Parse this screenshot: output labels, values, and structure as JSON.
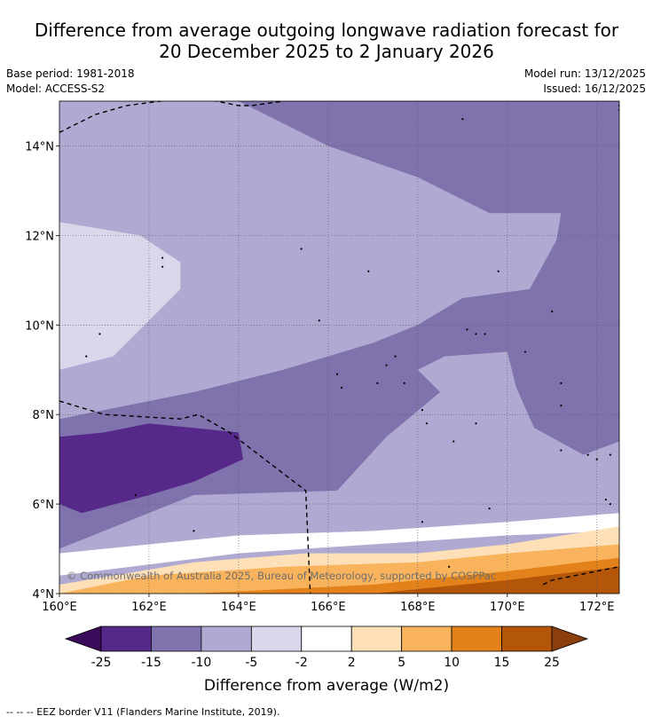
{
  "header": {
    "title_line1": "Difference from average outgoing longwave radiation forecast for",
    "title_line2": "20 December 2025 to 2 January 2026",
    "base_period": "Base period: 1981-2018",
    "model": "Model: ACCESS-S2",
    "model_run": "Model run: 13/12/2025",
    "issued": "Issued: 16/12/2025"
  },
  "chart_data": {
    "type": "heatmap",
    "title": "Difference from average outgoing longwave radiation forecast for 20 December 2025 to 2 January 2026",
    "x_range": [
      160,
      172.5
    ],
    "y_range": [
      4,
      15
    ],
    "x_ticks": [
      160,
      162,
      164,
      166,
      168,
      170,
      172
    ],
    "x_tick_labels": [
      "160°E",
      "162°E",
      "164°E",
      "166°E",
      "168°E",
      "170°E",
      "172°E"
    ],
    "y_ticks": [
      4,
      6,
      8,
      10,
      12,
      14
    ],
    "y_tick_labels": [
      "4°N",
      "6°N",
      "8°N",
      "10°N",
      "12°N",
      "14°N"
    ],
    "grid": true,
    "copyright": "© Commonwealth of Australia 2025, Bureau of Meteorology, supported by COSPPac",
    "colorbar": {
      "label": "Difference from average (W/m2)",
      "ticks": [
        "-25",
        "-15",
        "-10",
        "-5",
        "-2",
        "2",
        "5",
        "10",
        "15",
        "25"
      ],
      "under_color": "#3a0a5c",
      "over_color": "#8a3f0c",
      "bins": [
        {
          "range": [
            -25,
            -15
          ],
          "color": "#55288a"
        },
        {
          "range": [
            -15,
            -10
          ],
          "color": "#7f72ad"
        },
        {
          "range": [
            -10,
            -5
          ],
          "color": "#b0aad2"
        },
        {
          "range": [
            -5,
            -2
          ],
          "color": "#d8d8ea"
        },
        {
          "range": [
            -2,
            2
          ],
          "color": "#ffffff"
        },
        {
          "range": [
            2,
            5
          ],
          "color": "#fde0b8"
        },
        {
          "range": [
            5,
            10
          ],
          "color": "#f9b35c"
        },
        {
          "range": [
            10,
            15
          ],
          "color": "#e3821a"
        },
        {
          "range": [
            15,
            25
          ],
          "color": "#b4560a"
        }
      ]
    },
    "regions": [
      {
        "name": "region-minus10-minus5",
        "color": "#b0aad2",
        "points": [
          [
            160,
            15
          ],
          [
            164,
            15
          ],
          [
            166,
            14.2
          ],
          [
            168,
            13.4
          ],
          [
            170,
            12.4
          ],
          [
            171.3,
            12.5
          ],
          [
            170.5,
            11
          ],
          [
            168.5,
            10.8
          ],
          [
            167,
            10
          ],
          [
            165,
            9.3
          ],
          [
            163,
            8.8
          ],
          [
            160,
            8
          ],
          [
            160,
            15
          ]
        ]
      },
      {
        "name": "region-minus10-minus5-east",
        "color": "#b0aad2",
        "points": [
          [
            167.7,
            9.3
          ],
          [
            169,
            9.9
          ],
          [
            170,
            9.6
          ],
          [
            170.8,
            9.4
          ],
          [
            171,
            8.6
          ],
          [
            172,
            7.4
          ],
          [
            172.5,
            6.8
          ],
          [
            172.5,
            5.4
          ],
          [
            170,
            6
          ],
          [
            167,
            6.5
          ],
          [
            165.6,
            6.2
          ],
          [
            164,
            6.5
          ],
          [
            162,
            6.8
          ],
          [
            161.5,
            7.5
          ],
          [
            160,
            7.3
          ],
          [
            160,
            5
          ],
          [
            172.5,
            4
          ],
          [
            172.5,
            6.8
          ],
          [
            171.8,
            7
          ],
          [
            170.8,
            7.4
          ],
          [
            170.5,
            8.6
          ],
          [
            170.2,
            9.3
          ],
          [
            168.6,
            9.4
          ],
          [
            168,
            8.9
          ],
          [
            167.7,
            9.3
          ]
        ]
      },
      {
        "name": "region-minus5-minus2",
        "color": "#d8d8ea",
        "points": [
          [
            160,
            12.3
          ],
          [
            161.8,
            12
          ],
          [
            162.7,
            11.4
          ],
          [
            162.7,
            10.8
          ],
          [
            161.2,
            9.3
          ],
          [
            160,
            9
          ],
          [
            160,
            12.3
          ]
        ]
      },
      {
        "name": "region-minus15-minus10",
        "color": "#7f72ad",
        "points": [
          [
            162,
            15
          ],
          [
            172.5,
            15
          ],
          [
            172.5,
            7.4
          ],
          [
            171.7,
            7.1
          ],
          [
            170.6,
            7.7
          ],
          [
            170.2,
            8.6
          ],
          [
            170,
            9.4
          ],
          [
            168.6,
            9.3
          ],
          [
            168,
            9
          ],
          [
            168.5,
            8.5
          ],
          [
            167.3,
            7.5
          ],
          [
            166.2,
            6.3
          ],
          [
            163,
            6.2
          ],
          [
            160,
            5
          ],
          [
            160,
            7.9
          ],
          [
            163,
            8.5
          ],
          [
            165,
            9
          ],
          [
            167,
            9.6
          ],
          [
            168,
            10
          ],
          [
            169,
            10.6
          ],
          [
            170.5,
            10.8
          ],
          [
            171.1,
            11.9
          ],
          [
            171.2,
            12.5
          ],
          [
            169.6,
            12.5
          ],
          [
            168,
            13.3
          ],
          [
            166,
            14
          ],
          [
            164,
            15
          ],
          [
            162,
            15
          ]
        ]
      },
      {
        "name": "region-minus25-minus15",
        "color": "#55288a",
        "points": [
          [
            160,
            7.5
          ],
          [
            161,
            7.6
          ],
          [
            162,
            7.8
          ],
          [
            164,
            7.6
          ],
          [
            164.1,
            7
          ],
          [
            163,
            6.5
          ],
          [
            162,
            6.2
          ],
          [
            160.5,
            5.8
          ],
          [
            160,
            6
          ],
          [
            160,
            7.5
          ]
        ]
      },
      {
        "name": "region-minus2-plus2",
        "color": "#ffffff",
        "points": [
          [
            160,
            4.9
          ],
          [
            164,
            5.3
          ],
          [
            167,
            5.4
          ],
          [
            170,
            5.6
          ],
          [
            172.5,
            5.8
          ],
          [
            172.5,
            5.4
          ],
          [
            170,
            5.3
          ],
          [
            167,
            5.1
          ],
          [
            164,
            4.9
          ],
          [
            160,
            4.4
          ],
          [
            160,
            4.9
          ]
        ]
      },
      {
        "name": "region-plus2-plus5",
        "color": "#fde0b8",
        "points": [
          [
            160,
            4.2
          ],
          [
            163,
            4.7
          ],
          [
            165.5,
            4.9
          ],
          [
            168,
            4.9
          ],
          [
            170,
            5.1
          ],
          [
            172.5,
            5.5
          ],
          [
            172.5,
            4
          ],
          [
            160,
            4
          ],
          [
            160,
            4.2
          ]
        ]
      },
      {
        "name": "region-plus5-plus10",
        "color": "#f9b35c",
        "points": [
          [
            160,
            4
          ],
          [
            162,
            4.4
          ],
          [
            165,
            4.6
          ],
          [
            168,
            4.7
          ],
          [
            170,
            4.9
          ],
          [
            172.5,
            5.1
          ],
          [
            172.5,
            4
          ],
          [
            160,
            4
          ]
        ]
      },
      {
        "name": "region-plus10-plus15",
        "color": "#e3821a",
        "points": [
          [
            163,
            4
          ],
          [
            167,
            4.2
          ],
          [
            170,
            4.5
          ],
          [
            172.5,
            4.8
          ],
          [
            172.5,
            4
          ],
          [
            163,
            4
          ]
        ]
      },
      {
        "name": "region-plus15-plus25",
        "color": "#b4560a",
        "points": [
          [
            167,
            4
          ],
          [
            170,
            4.3
          ],
          [
            172.5,
            4.6
          ],
          [
            172.5,
            4
          ],
          [
            167,
            4
          ]
        ]
      }
    ],
    "eez_borders": [
      {
        "name": "eez-border-north",
        "points": [
          [
            160,
            14.3
          ],
          [
            160.8,
            14.7
          ],
          [
            161.5,
            14.9
          ],
          [
            163,
            15.1
          ],
          [
            164,
            14.9
          ],
          [
            164.3,
            14.9
          ],
          [
            165,
            15
          ]
        ]
      },
      {
        "name": "eez-border-south",
        "points": [
          [
            160,
            8.3
          ],
          [
            161,
            8
          ],
          [
            162.7,
            7.9
          ],
          [
            163.1,
            8
          ],
          [
            163.8,
            7.6
          ],
          [
            165.5,
            6.3
          ],
          [
            165.6,
            4
          ]
        ]
      },
      {
        "name": "eez-border-southeast",
        "points": [
          [
            170.8,
            4.2
          ],
          [
            171,
            4.3
          ],
          [
            172.5,
            4.6
          ]
        ]
      }
    ],
    "islands": [
      [
        169,
        14.6
      ],
      [
        162.3,
        11.5
      ],
      [
        162.3,
        11.3
      ],
      [
        165.4,
        11.7
      ],
      [
        166.9,
        11.2
      ],
      [
        169.8,
        11.2
      ],
      [
        171,
        10.3
      ],
      [
        160.9,
        9.8
      ],
      [
        165.8,
        10.1
      ],
      [
        169.1,
        9.9
      ],
      [
        169.3,
        9.8
      ],
      [
        169.5,
        9.8
      ],
      [
        167.5,
        9.3
      ],
      [
        167.3,
        9.1
      ],
      [
        167.1,
        8.7
      ],
      [
        166.2,
        8.9
      ],
      [
        166.3,
        8.6
      ],
      [
        167.7,
        8.7
      ],
      [
        168.1,
        8.1
      ],
      [
        168.2,
        7.8
      ],
      [
        168.8,
        7.4
      ],
      [
        169.3,
        7.8
      ],
      [
        170.4,
        9.4
      ],
      [
        171.2,
        8.7
      ],
      [
        171.2,
        8.2
      ],
      [
        171.2,
        7.2
      ],
      [
        171.8,
        7.1
      ],
      [
        172,
        7
      ],
      [
        172.3,
        7.1
      ],
      [
        172.2,
        6.1
      ],
      [
        172.3,
        6.0
      ],
      [
        168.1,
        5.6
      ],
      [
        169.6,
        5.9
      ],
      [
        161.7,
        6.2
      ],
      [
        163,
        5.4
      ],
      [
        160.6,
        9.3
      ],
      [
        172.5,
        14.9
      ],
      [
        172.5,
        14.8
      ],
      [
        168.7,
        4.6
      ]
    ]
  },
  "footer": {
    "legend_note": "--  --  -- EEZ border V11 (Flanders Marine Institute, 2019)."
  }
}
